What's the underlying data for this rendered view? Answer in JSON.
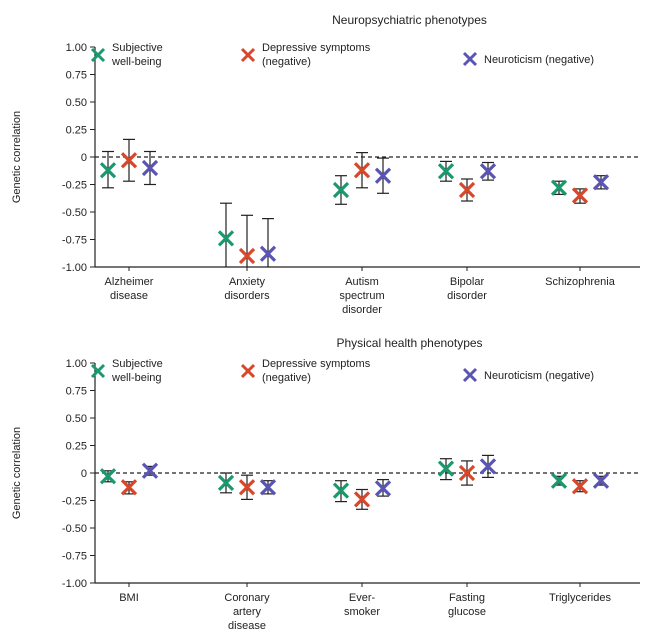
{
  "colors": {
    "swb": "#1a9a6c",
    "dep": "#d9472b",
    "neu": "#5a55b5",
    "axis": "#222222"
  },
  "chart_data": [
    {
      "type": "scatter",
      "title": "Neuropsychiatric phenotypes",
      "ylabel": "Genetic correlation",
      "xlabel": "",
      "ylim": [
        -1.0,
        1.0
      ],
      "yticks": [
        "1.00",
        "0.75",
        "0.50",
        "0.25",
        "0",
        "-0.25",
        "-0.50",
        "-0.75",
        "-1.00"
      ],
      "categories": [
        [
          "Alzheimer",
          "disease"
        ],
        [
          "Anxiety",
          "disorders"
        ],
        [
          "Autism",
          "spectrum",
          "disorder"
        ],
        [
          "Bipolar",
          "disorder"
        ],
        [
          "Schizophrenia"
        ]
      ],
      "legend": [
        {
          "lines": [
            "Subjective",
            "well-being"
          ],
          "color": "#1a9a6c"
        },
        {
          "lines": [
            "Depressive symptoms",
            "(negative)"
          ],
          "color": "#d9472b"
        },
        {
          "lines": [
            "Neuroticism (negative)"
          ],
          "color": "#5a55b5"
        }
      ],
      "series": [
        {
          "name": "Subjective well-being",
          "color": "#1a9a6c",
          "values": [
            -0.12,
            -0.74,
            -0.3,
            -0.13,
            -0.28
          ],
          "lower": [
            -0.28,
            -1.0,
            -0.43,
            -0.22,
            -0.34
          ],
          "upper": [
            0.05,
            -0.42,
            -0.17,
            -0.04,
            -0.22
          ]
        },
        {
          "name": "Depressive symptoms (negative)",
          "color": "#d9472b",
          "values": [
            -0.03,
            -0.9,
            -0.12,
            -0.3,
            -0.35
          ],
          "lower": [
            -0.22,
            -1.0,
            -0.28,
            -0.4,
            -0.42
          ],
          "upper": [
            0.16,
            -0.53,
            0.04,
            -0.2,
            -0.29
          ]
        },
        {
          "name": "Neuroticism (negative)",
          "color": "#5a55b5",
          "values": [
            -0.1,
            -0.88,
            -0.17,
            -0.13,
            -0.23
          ],
          "lower": [
            -0.25,
            -1.0,
            -0.33,
            -0.21,
            -0.29
          ],
          "upper": [
            0.05,
            -0.56,
            -0.01,
            -0.05,
            -0.17
          ]
        }
      ]
    },
    {
      "type": "scatter",
      "title": "Physical health phenotypes",
      "ylabel": "Genetic correlation",
      "xlabel": "",
      "ylim": [
        -1.0,
        1.0
      ],
      "yticks": [
        "1.00",
        "0.75",
        "0.50",
        "0.25",
        "0",
        "-0.25",
        "-0.50",
        "-0.75",
        "-1.00"
      ],
      "categories": [
        [
          "BMI"
        ],
        [
          "Coronary",
          "artery",
          "disease"
        ],
        [
          "Ever-",
          "smoker"
        ],
        [
          "Fasting",
          "glucose"
        ],
        [
          "Triglycerides"
        ]
      ],
      "legend": [
        {
          "lines": [
            "Subjective",
            "well-being"
          ],
          "color": "#1a9a6c"
        },
        {
          "lines": [
            "Depressive symptoms",
            "(negative)"
          ],
          "color": "#d9472b"
        },
        {
          "lines": [
            "Neuroticism (negative)"
          ],
          "color": "#5a55b5"
        }
      ],
      "series": [
        {
          "name": "Subjective well-being",
          "color": "#1a9a6c",
          "values": [
            -0.03,
            -0.09,
            -0.16,
            0.04,
            -0.07
          ],
          "lower": [
            -0.08,
            -0.18,
            -0.26,
            -0.06,
            -0.11
          ],
          "upper": [
            0.02,
            0.0,
            -0.07,
            0.13,
            -0.03
          ]
        },
        {
          "name": "Depressive symptoms (negative)",
          "color": "#d9472b",
          "values": [
            -0.13,
            -0.13,
            -0.24,
            0.0,
            -0.12
          ],
          "lower": [
            -0.19,
            -0.24,
            -0.33,
            -0.11,
            -0.17
          ],
          "upper": [
            -0.08,
            -0.02,
            -0.15,
            0.11,
            -0.07
          ]
        },
        {
          "name": "Neuroticism (negative)",
          "color": "#5a55b5",
          "values": [
            0.02,
            -0.13,
            -0.14,
            0.06,
            -0.07
          ],
          "lower": [
            -0.02,
            -0.19,
            -0.21,
            -0.04,
            -0.11
          ],
          "upper": [
            0.06,
            -0.07,
            -0.06,
            0.16,
            -0.03
          ]
        }
      ]
    }
  ]
}
